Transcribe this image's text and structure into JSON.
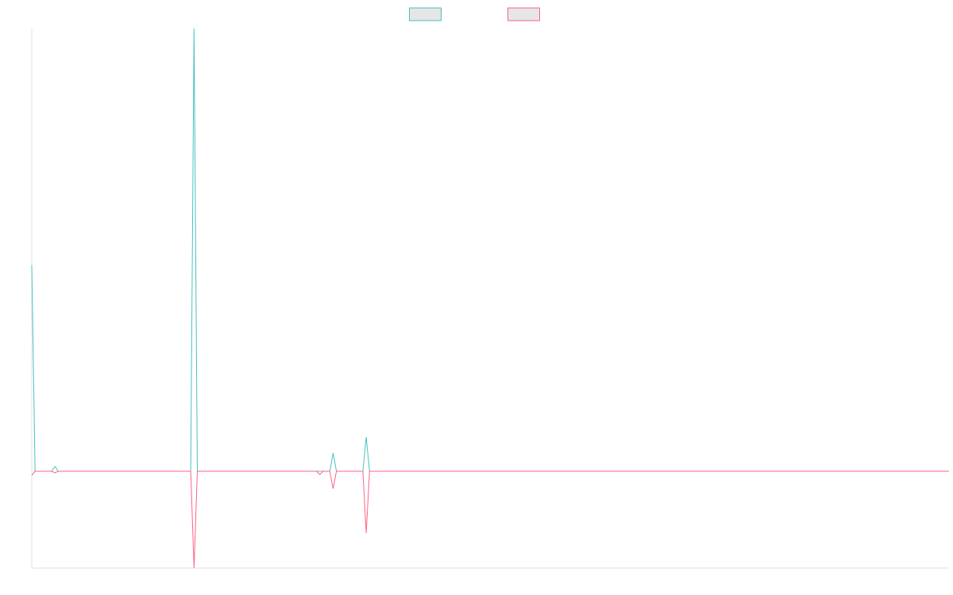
{
  "chart_data": {
    "type": "line",
    "x": [
      0,
      1,
      6,
      7,
      8,
      48,
      49,
      50,
      86,
      87,
      88,
      90,
      91,
      92,
      100,
      101,
      102,
      277
    ],
    "xlim": [
      0,
      277
    ],
    "ylim": [
      -122,
      558
    ],
    "series": [
      {
        "color": "#4bc0c0",
        "values": [
          260,
          0,
          0,
          6,
          0,
          0,
          558,
          0,
          0,
          0,
          0,
          0,
          23,
          0,
          0,
          43,
          0,
          0
        ]
      },
      {
        "color": "#ff6384",
        "values": [
          -5,
          0,
          0,
          -2,
          0,
          0,
          -122,
          0,
          0,
          -4,
          0,
          0,
          -22,
          0,
          0,
          -78,
          0,
          0
        ]
      }
    ],
    "legend": "top",
    "grid": false
  }
}
